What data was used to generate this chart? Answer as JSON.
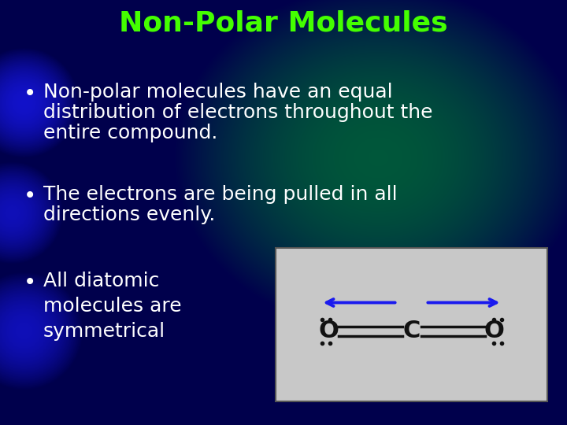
{
  "title": "Non-Polar Molecules",
  "title_color": "#44ff00",
  "title_fontsize": 26,
  "bullet1_line1": "Non-polar molecules have an equal",
  "bullet1_line2": "distribution of electrons throughout the",
  "bullet1_line3": "entire compound.",
  "bullet2_line1": "The electrons are being pulled in all",
  "bullet2_line2": "directions evenly.",
  "bullet3_line1": "All diatomic",
  "bullet3_line2": "molecules are",
  "bullet3_line3": "symmetrical",
  "bullet_fontsize": 18,
  "text_color": "#ffffff",
  "box_bg": "#c8c8c8",
  "box_edge": "#555555",
  "arrow_color": "#1a1aee",
  "molecule_color": "#111111",
  "figsize": [
    7.2,
    5.4
  ],
  "dpi": 100
}
